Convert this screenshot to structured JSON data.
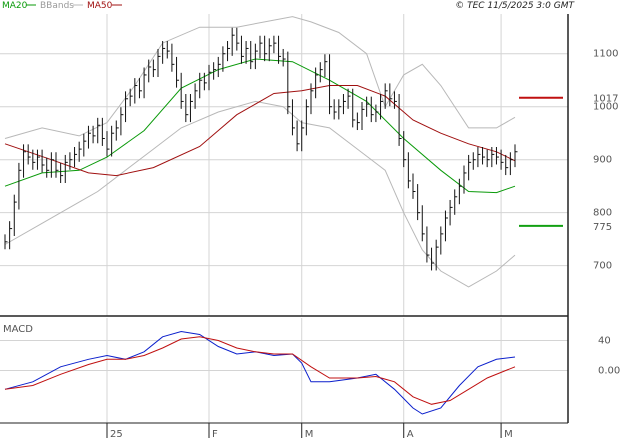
{
  "chart_data": [
    {
      "type": "line",
      "panel": "price",
      "copyright": "© TEC 11/5/2025 3:0 GMT",
      "legend": [
        {
          "label": "MA20",
          "color": "#0a9a0a"
        },
        {
          "label": "BBands",
          "color": "#b8b8b8"
        },
        {
          "label": "MA50",
          "color": "#a01010"
        }
      ],
      "ylim": [
        605,
        1175
      ],
      "y_ticks": [
        700,
        800,
        900,
        1000,
        1100
      ],
      "y_tick_labels": [
        "700",
        "800",
        "900",
        "1000",
        "1100"
      ],
      "x_tick_labels": [
        {
          "label": "25",
          "bar": 22
        },
        {
          "label": "F",
          "bar": 44
        },
        {
          "label": "M",
          "bar": 64
        },
        {
          "label": "A",
          "bar": 86
        },
        {
          "label": "M",
          "bar": 107
        }
      ],
      "price_markers": [
        {
          "label": "1017",
          "value": 1017,
          "color": "#c01010"
        },
        {
          "label": "775",
          "value": 775,
          "color": "#12a012"
        }
      ],
      "n_bars": 111,
      "close": [
        745,
        770,
        820,
        880,
        915,
        905,
        895,
        905,
        890,
        880,
        900,
        880,
        870,
        895,
        900,
        910,
        920,
        935,
        950,
        945,
        965,
        940,
        920,
        950,
        960,
        985,
        1015,
        1020,
        1040,
        1030,
        1060,
        1075,
        1070,
        1095,
        1110,
        1105,
        1080,
        1050,
        1010,
        985,
        1010,
        1030,
        1050,
        1045,
        1065,
        1070,
        1080,
        1100,
        1110,
        1135,
        1120,
        1095,
        1110,
        1085,
        1105,
        1120,
        1100,
        1115,
        1120,
        1095,
        1090,
        1000,
        960,
        930,
        960,
        1000,
        1030,
        1060,
        1070,
        1085,
        1000,
        990,
        1000,
        1010,
        1020,
        975,
        970,
        995,
        1005,
        985,
        990,
        1010,
        1030,
        1015,
        1010,
        940,
        900,
        860,
        840,
        800,
        760,
        720,
        705,
        735,
        760,
        790,
        810,
        830,
        850,
        875,
        895,
        900,
        910,
        905,
        900,
        910,
        905,
        895,
        885,
        900,
        915
      ],
      "series": [
        {
          "name": "MA20",
          "color": "#0a9a0a",
          "points": [
            [
              0,
              850
            ],
            [
              8,
              875
            ],
            [
              16,
              880
            ],
            [
              22,
              905
            ],
            [
              30,
              955
            ],
            [
              38,
              1035
            ],
            [
              46,
              1070
            ],
            [
              54,
              1090
            ],
            [
              62,
              1085
            ],
            [
              70,
              1050
            ],
            [
              78,
              1010
            ],
            [
              86,
              940
            ],
            [
              94,
              880
            ],
            [
              100,
              840
            ],
            [
              106,
              838
            ],
            [
              110,
              850
            ]
          ]
        },
        {
          "name": "BBands upper",
          "color": "#b8b8b8",
          "points": [
            [
              0,
              940
            ],
            [
              8,
              960
            ],
            [
              16,
              945
            ],
            [
              22,
              970
            ],
            [
              28,
              1040
            ],
            [
              34,
              1120
            ],
            [
              42,
              1150
            ],
            [
              50,
              1150
            ],
            [
              56,
              1160
            ],
            [
              62,
              1170
            ],
            [
              66,
              1160
            ],
            [
              72,
              1140
            ],
            [
              78,
              1100
            ],
            [
              82,
              1000
            ],
            [
              86,
              1060
            ],
            [
              90,
              1080
            ],
            [
              94,
              1040
            ],
            [
              100,
              960
            ],
            [
              106,
              960
            ],
            [
              110,
              980
            ]
          ]
        },
        {
          "name": "BBands lower",
          "color": "#b8b8b8",
          "points": [
            [
              0,
              740
            ],
            [
              8,
              780
            ],
            [
              16,
              820
            ],
            [
              20,
              840
            ],
            [
              26,
              880
            ],
            [
              32,
              920
            ],
            [
              38,
              960
            ],
            [
              46,
              990
            ],
            [
              54,
              1010
            ],
            [
              60,
              1000
            ],
            [
              64,
              970
            ],
            [
              70,
              960
            ],
            [
              76,
              920
            ],
            [
              82,
              880
            ],
            [
              86,
              800
            ],
            [
              90,
              730
            ],
            [
              94,
              690
            ],
            [
              100,
              660
            ],
            [
              106,
              690
            ],
            [
              110,
              720
            ]
          ]
        },
        {
          "name": "MA50",
          "color": "#a01010",
          "points": [
            [
              0,
              930
            ],
            [
              10,
              900
            ],
            [
              18,
              875
            ],
            [
              24,
              870
            ],
            [
              32,
              885
            ],
            [
              42,
              925
            ],
            [
              50,
              985
            ],
            [
              58,
              1025
            ],
            [
              64,
              1030
            ],
            [
              70,
              1040
            ],
            [
              76,
              1040
            ],
            [
              82,
              1020
            ],
            [
              88,
              975
            ],
            [
              94,
              950
            ],
            [
              100,
              930
            ],
            [
              106,
              915
            ],
            [
              110,
              898
            ]
          ]
        }
      ]
    },
    {
      "type": "line",
      "panel": "MACD",
      "title": "MACD",
      "ylim": [
        -70,
        70
      ],
      "y_ticks": [
        40,
        0
      ],
      "y_tick_labels": [
        "40",
        "0.00"
      ],
      "series": [
        {
          "name": "MACD",
          "color": "#0b1fcc",
          "points": [
            [
              0,
              -25
            ],
            [
              6,
              -15
            ],
            [
              12,
              5
            ],
            [
              18,
              15
            ],
            [
              22,
              20
            ],
            [
              26,
              15
            ],
            [
              30,
              25
            ],
            [
              34,
              45
            ],
            [
              38,
              52
            ],
            [
              42,
              48
            ],
            [
              46,
              32
            ],
            [
              50,
              22
            ],
            [
              54,
              25
            ],
            [
              58,
              20
            ],
            [
              62,
              22
            ],
            [
              64,
              10
            ],
            [
              66,
              -15
            ],
            [
              70,
              -15
            ],
            [
              76,
              -10
            ],
            [
              80,
              -5
            ],
            [
              84,
              -25
            ],
            [
              88,
              -50
            ],
            [
              90,
              -58
            ],
            [
              94,
              -50
            ],
            [
              98,
              -20
            ],
            [
              102,
              5
            ],
            [
              106,
              15
            ],
            [
              110,
              18
            ]
          ]
        },
        {
          "name": "Signal",
          "color": "#c01010",
          "points": [
            [
              0,
              -25
            ],
            [
              6,
              -20
            ],
            [
              12,
              -5
            ],
            [
              18,
              8
            ],
            [
              22,
              15
            ],
            [
              26,
              15
            ],
            [
              30,
              20
            ],
            [
              34,
              30
            ],
            [
              38,
              42
            ],
            [
              42,
              45
            ],
            [
              46,
              40
            ],
            [
              50,
              30
            ],
            [
              54,
              25
            ],
            [
              58,
              22
            ],
            [
              62,
              22
            ],
            [
              66,
              5
            ],
            [
              70,
              -10
            ],
            [
              76,
              -10
            ],
            [
              80,
              -8
            ],
            [
              84,
              -15
            ],
            [
              88,
              -35
            ],
            [
              92,
              -45
            ],
            [
              96,
              -40
            ],
            [
              100,
              -25
            ],
            [
              104,
              -10
            ],
            [
              110,
              5
            ]
          ]
        }
      ]
    }
  ]
}
